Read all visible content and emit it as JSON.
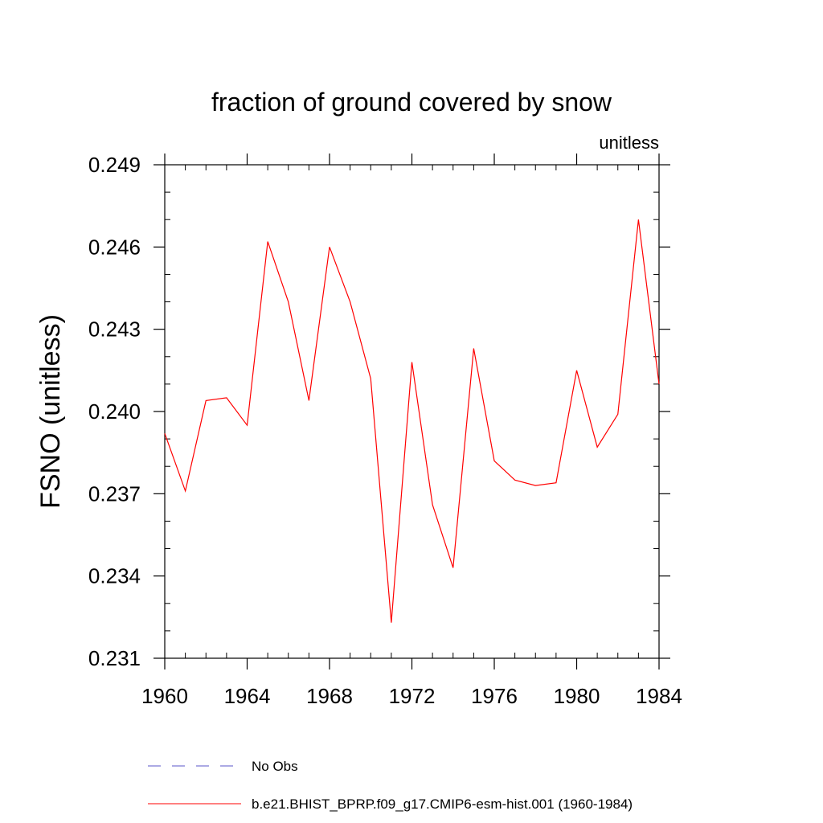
{
  "chart_data": {
    "type": "line",
    "title": "fraction of ground covered by snow",
    "units_label": "unitless",
    "ylabel": "FSNO  (unitless)",
    "xlabel": "",
    "xlim": [
      1960,
      1984
    ],
    "ylim": [
      0.231,
      0.249
    ],
    "x_ticks": [
      1960,
      1964,
      1968,
      1972,
      1976,
      1980,
      1984
    ],
    "x_tick_labels": [
      "1960",
      "1964",
      "1968",
      "1972",
      "1976",
      "1980",
      "1984"
    ],
    "y_ticks": [
      0.231,
      0.234,
      0.237,
      0.24,
      0.243,
      0.246,
      0.249
    ],
    "y_tick_labels": [
      "0.231",
      "0.234",
      "0.237",
      "0.240",
      "0.243",
      "0.246",
      "0.249"
    ],
    "x_minor_step": 1,
    "y_minor_step": 0.001,
    "grid": false,
    "legend_position": "bottom",
    "series": [
      {
        "name": "No Obs",
        "color": "#5a55c8",
        "style": "dashed",
        "x": [],
        "values": []
      },
      {
        "name": "b.e21.BHIST_BPRP.f09_g17.CMIP6-esm-hist.001 (1960-1984)",
        "color": "#ff0000",
        "style": "solid",
        "x": [
          1960,
          1961,
          1962,
          1963,
          1964,
          1965,
          1966,
          1967,
          1968,
          1969,
          1970,
          1971,
          1972,
          1973,
          1974,
          1975,
          1976,
          1977,
          1978,
          1979,
          1980,
          1981,
          1982,
          1983,
          1984
        ],
        "values": [
          0.2392,
          0.2371,
          0.2404,
          0.2405,
          0.2395,
          0.2462,
          0.244,
          0.2404,
          0.246,
          0.244,
          0.2412,
          0.2323,
          0.2418,
          0.2366,
          0.2343,
          0.2423,
          0.2382,
          0.2375,
          0.2373,
          0.2374,
          0.2415,
          0.2387,
          0.2399,
          0.247,
          0.241
        ]
      }
    ]
  }
}
